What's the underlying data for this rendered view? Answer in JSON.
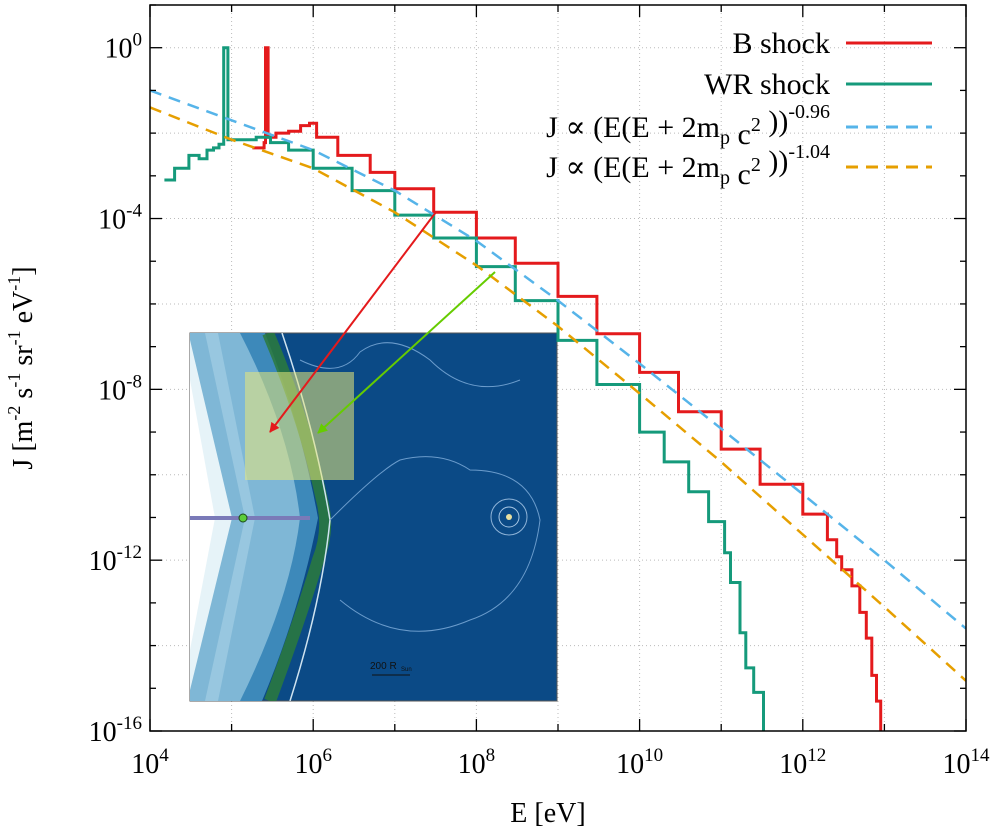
{
  "chart_data": {
    "type": "line",
    "xlabel": "E [eV]",
    "ylabel": "J [m-2 s-1 sr-1 eV-1]",
    "x_scale": "log",
    "y_scale": "log",
    "xlim": [
      10000,
      100000000000000
    ],
    "ylim": [
      1e-16,
      10
    ],
    "x_ticks": [
      {
        "value": 10000,
        "base": "10",
        "exp": "4"
      },
      {
        "value": 1000000,
        "base": "10",
        "exp": "6"
      },
      {
        "value": 100000000,
        "base": "10",
        "exp": "8"
      },
      {
        "value": 10000000000,
        "base": "10",
        "exp": "10"
      },
      {
        "value": 1000000000000,
        "base": "10",
        "exp": "12"
      },
      {
        "value": 100000000000000,
        "base": "10",
        "exp": "14"
      }
    ],
    "y_ticks": [
      {
        "value": 1,
        "base": "10",
        "exp": "0"
      },
      {
        "value": 0.0001,
        "base": "10",
        "exp": "-4"
      },
      {
        "value": 1e-08,
        "base": "10",
        "exp": "-8"
      },
      {
        "value": 1e-12,
        "base": "10",
        "exp": "-12"
      },
      {
        "value": 1e-16,
        "base": "10",
        "exp": "-16"
      }
    ],
    "series": [
      {
        "name": "B shock",
        "color": "#e41a1c",
        "style": "step",
        "points": [
          [
            180000,
            0.0045
          ],
          [
            250000,
            0.006
          ],
          [
            260000,
            1.0
          ],
          [
            280000,
            0.008
          ],
          [
            350000,
            0.01
          ],
          [
            500000,
            0.011
          ],
          [
            700000,
            0.015
          ],
          [
            900000,
            0.017
          ],
          [
            1100000,
            0.008
          ],
          [
            2000000,
            0.003
          ],
          [
            5000000,
            0.0012
          ],
          [
            10000000,
            0.0005
          ],
          [
            30000000,
            0.00014
          ],
          [
            100000000,
            3.5e-05
          ],
          [
            300000000,
            9e-06
          ],
          [
            1000000000,
            1.5e-06
          ],
          [
            3000000000,
            2e-07
          ],
          [
            10000000000,
            2.5e-08
          ],
          [
            30000000000,
            3e-09
          ],
          [
            100000000000,
            4e-10
          ],
          [
            300000000000,
            6e-11
          ],
          [
            1000000000000,
            1.2e-11
          ],
          [
            2000000000000,
            3e-12
          ],
          [
            2600000000000,
            1.2e-12
          ],
          [
            3000000000000,
            6e-13
          ],
          [
            4000000000000,
            2.5e-13
          ],
          [
            5000000000000,
            6e-14
          ],
          [
            6000000000000,
            1.5e-14
          ],
          [
            7000000000000,
            2e-15
          ],
          [
            8000000000000,
            5e-16
          ],
          [
            9000000000000,
            8e-17
          ]
        ]
      },
      {
        "name": "WR shock",
        "color": "#159a7b",
        "style": "step",
        "points": [
          [
            15000,
            0.0008
          ],
          [
            20000,
            0.0015
          ],
          [
            30000,
            0.003
          ],
          [
            40000,
            0.0025
          ],
          [
            50000,
            0.004
          ],
          [
            60000,
            0.0045
          ],
          [
            70000,
            0.0055
          ],
          [
            80000,
            1.0
          ],
          [
            90000,
            0.007
          ],
          [
            150000,
            0.007
          ],
          [
            200000,
            0.008
          ],
          [
            300000,
            0.006
          ],
          [
            500000,
            0.004
          ],
          [
            1000000,
            0.0015
          ],
          [
            3000000,
            0.00045
          ],
          [
            10000000,
            0.00012
          ],
          [
            30000000,
            3.5e-05
          ],
          [
            100000000,
            7.5e-06
          ],
          [
            300000000,
            1.2e-06
          ],
          [
            1000000000,
            1.4e-07
          ],
          [
            3000000000,
            1.3e-08
          ],
          [
            10000000000,
            1e-09
          ],
          [
            20000000000,
            2e-10
          ],
          [
            40000000000,
            4e-11
          ],
          [
            70000000000,
            8e-12
          ],
          [
            110000000000,
            1.5e-12
          ],
          [
            130000000000,
            3e-13
          ],
          [
            170000000000,
            2e-14
          ],
          [
            200000000000,
            3e-15
          ],
          [
            250000000000,
            8e-16
          ],
          [
            330000000000,
            1e-16
          ]
        ]
      },
      {
        "name": "J ∝ (E(E + 2mp c2 ))-0.96",
        "color": "#56b4e9",
        "style": "dashed",
        "points": [
          [
            10000,
            0.1
          ],
          [
            100000,
            0.02
          ],
          [
            1000000,
            0.004
          ],
          [
            10000000,
            0.00045
          ],
          [
            100000000,
            3e-05
          ],
          [
            1000000000,
            1.2e-06
          ],
          [
            10000000000,
            4e-08
          ],
          [
            100000000000,
            1.2e-09
          ],
          [
            1000000000000,
            3.5e-11
          ],
          [
            10000000000000,
            1e-12
          ],
          [
            100000000000000,
            2.5e-14
          ]
        ]
      },
      {
        "name": "J ∝ (E(E + 2mp c2 ))-1.04",
        "color": "#e69f00",
        "style": "dashed",
        "points": [
          [
            10000,
            0.04
          ],
          [
            100000,
            0.007
          ],
          [
            1000000,
            0.0015
          ],
          [
            10000000,
            0.00014
          ],
          [
            100000000,
            8e-06
          ],
          [
            1000000000,
            3e-07
          ],
          [
            10000000000,
            8e-09
          ],
          [
            100000000000,
            2e-10
          ],
          [
            1000000000000,
            4e-12
          ],
          [
            10000000000000,
            8e-14
          ],
          [
            100000000000000,
            1.5e-15
          ]
        ]
      }
    ],
    "legend": {
      "placement": "top-right",
      "entries": [
        {
          "color": "#e41a1c",
          "dashed": false,
          "parts": [
            {
              "t": "B shock",
              "s": "n"
            }
          ]
        },
        {
          "color": "#159a7b",
          "dashed": false,
          "parts": [
            {
              "t": "WR shock",
              "s": "n"
            }
          ]
        },
        {
          "color": "#56b4e9",
          "dashed": true,
          "parts": [
            {
              "t": "J ∝ (E(E + 2m",
              "s": "n"
            },
            {
              "t": "p",
              "s": "sub"
            },
            {
              "t": " c",
              "s": "n"
            },
            {
              "t": "2",
              "s": "sup"
            },
            {
              "t": " ))",
              "s": "n"
            },
            {
              "t": "-0.96",
              "s": "sup"
            }
          ]
        },
        {
          "color": "#e69f00",
          "dashed": true,
          "parts": [
            {
              "t": "J ∝ (E(E + 2m",
              "s": "n"
            },
            {
              "t": "p",
              "s": "sub"
            },
            {
              "t": " c",
              "s": "n"
            },
            {
              "t": "2",
              "s": "sup"
            },
            {
              "t": " ))",
              "s": "n"
            },
            {
              "t": "-1.04",
              "s": "sup"
            }
          ]
        }
      ]
    },
    "inset": {
      "scale_label": "200 R",
      "scale_sub": "Sun",
      "arrow_colors": [
        "#e41a1c",
        "#66cc00"
      ]
    }
  }
}
